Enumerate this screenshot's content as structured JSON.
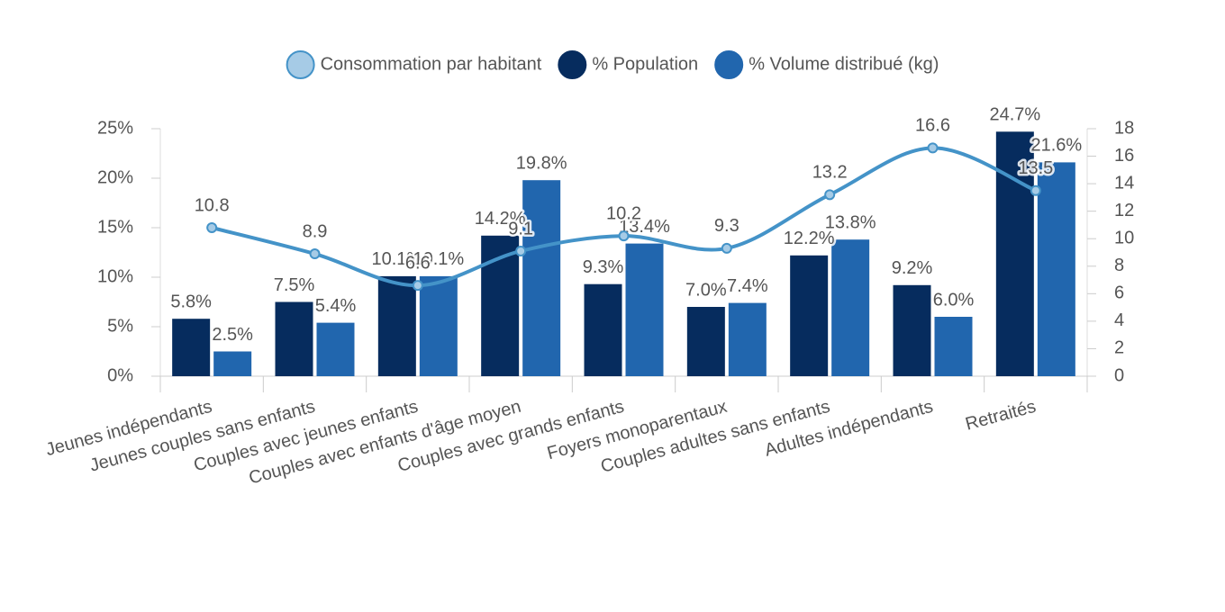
{
  "chart_data": {
    "type": "bar",
    "categories": [
      "Jeunes indépendants",
      "Jeunes couples sans enfants",
      "Couples avec jeunes enfants",
      "Couples avec enfants d'âge moyen",
      "Couples avec grands enfants",
      "Foyers monoparentaux",
      "Couples adultes sans enfants",
      "Adultes indépendants",
      "Retraités"
    ],
    "series": [
      {
        "name": "Consommation par habitant",
        "type": "line",
        "axis": "y2",
        "color": "#4493c8",
        "values": [
          10.8,
          8.9,
          6.6,
          9.1,
          10.2,
          9.3,
          13.2,
          16.6,
          13.5
        ]
      },
      {
        "name": "% Population",
        "color": "#062c5e",
        "values": [
          5.8,
          7.5,
          10.1,
          14.2,
          9.3,
          7.0,
          12.2,
          9.2,
          24.7
        ],
        "value_labels": [
          "5.8%",
          "7.5%",
          "10.1%",
          "14.2%",
          "9.3%",
          "7.0%",
          "12.2%",
          "9.2%",
          "24.7%"
        ]
      },
      {
        "name": "% Volume distribué (kg)",
        "color": "#2166ae",
        "values": [
          2.5,
          5.4,
          10.1,
          19.8,
          13.4,
          7.4,
          13.8,
          6.0,
          21.6
        ],
        "value_labels": [
          "2.5%",
          "5.4%",
          "10.1%",
          "19.8%",
          "13.4%",
          "7.4%",
          "13.8%",
          "6.0%",
          "21.6%"
        ]
      }
    ],
    "ylim": [
      0,
      25
    ],
    "yticks": [
      {
        "value": 0,
        "label": "0%"
      },
      {
        "value": 5,
        "label": "5%"
      },
      {
        "value": 10,
        "label": "10%"
      },
      {
        "value": 15,
        "label": "15%"
      },
      {
        "value": 20,
        "label": "20%"
      },
      {
        "value": 25,
        "label": "25%"
      }
    ],
    "y2lim": [
      0,
      18
    ],
    "y2ticks": [
      0,
      2,
      4,
      6,
      8,
      10,
      12,
      14,
      16,
      18
    ],
    "legend": "top"
  }
}
